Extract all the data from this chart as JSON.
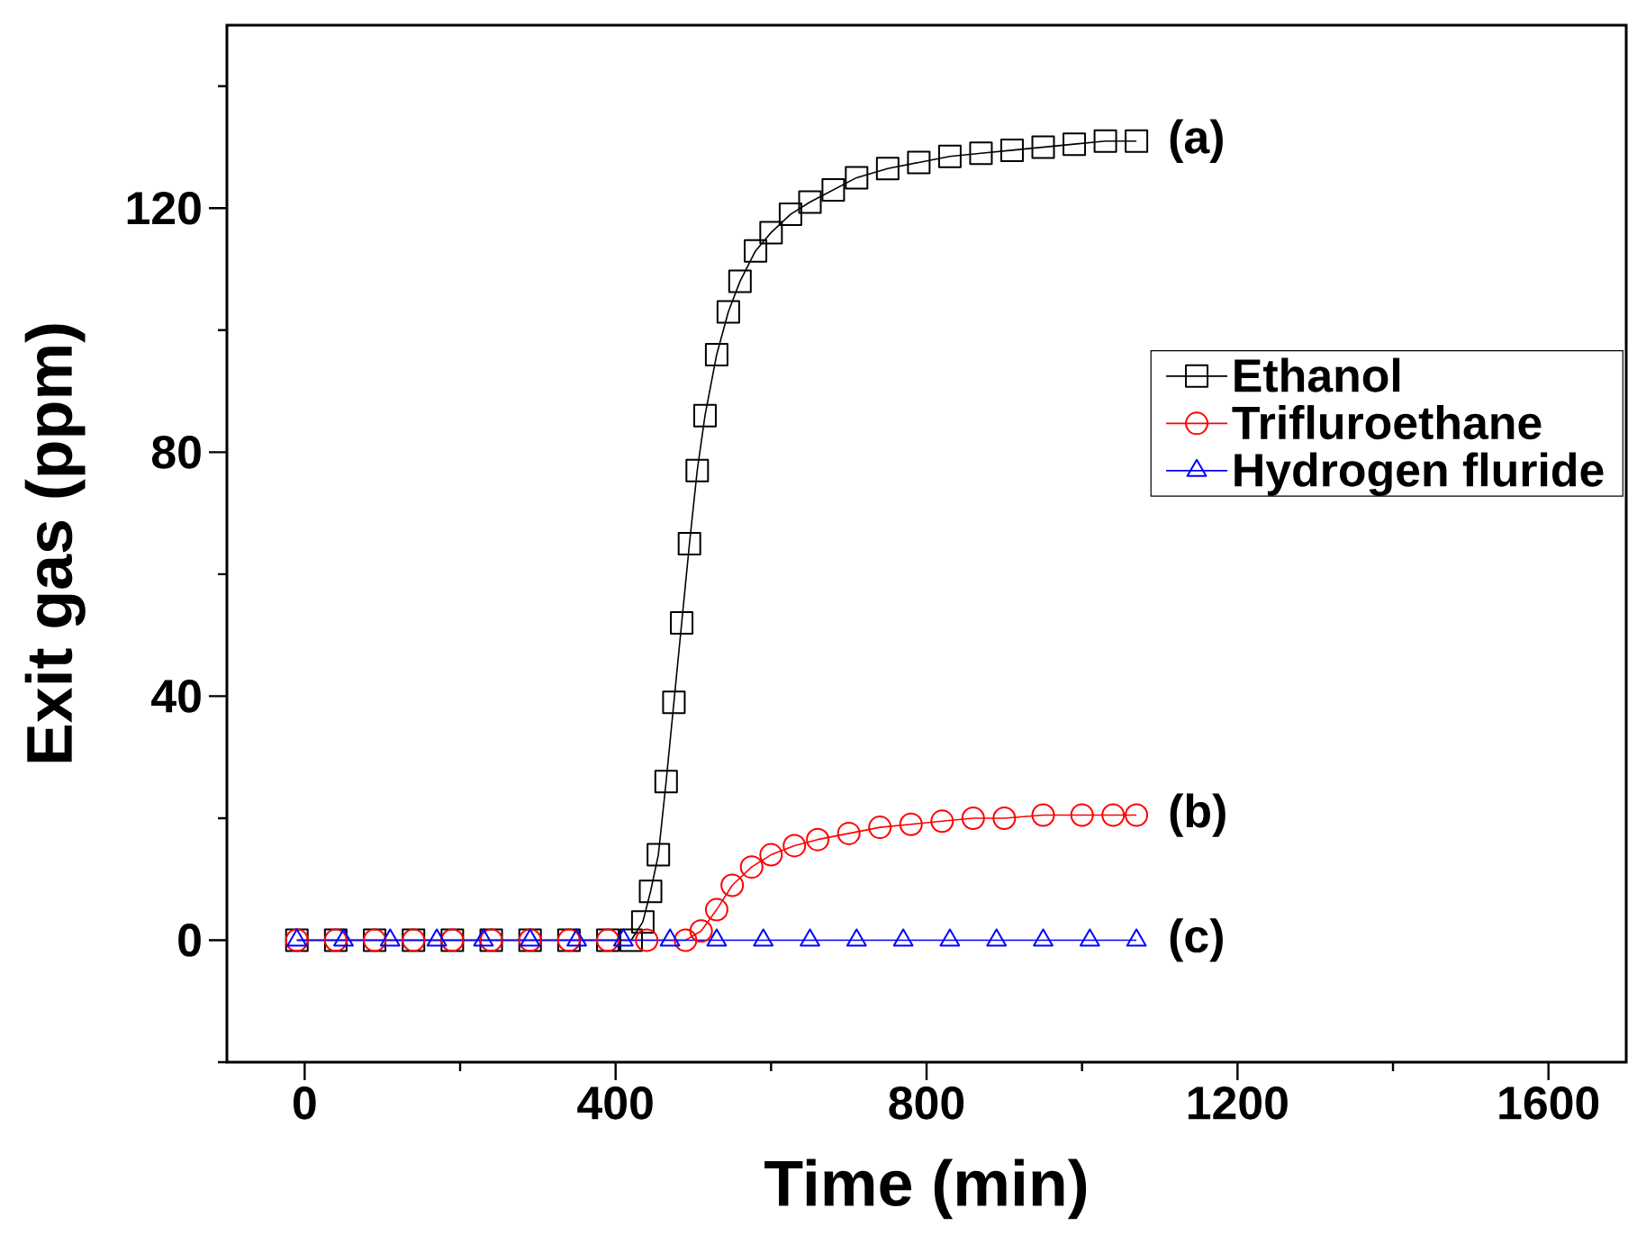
{
  "chart_data": {
    "type": "line",
    "xlabel": "Time (min)",
    "ylabel": "Exit gas (ppm)",
    "xlim": [
      -100,
      1700
    ],
    "ylim": [
      -20,
      150
    ],
    "xticks": [
      0,
      {
        "value": 200,
        "label": null
      },
      400,
      {
        "value": 600,
        "label": null
      },
      800,
      {
        "value": 1000,
        "label": null
      },
      1200,
      {
        "value": 1400,
        "label": null
      },
      1600
    ],
    "yticks": [
      {
        "value": -20,
        "label": null
      },
      0,
      {
        "value": 20,
        "label": null
      },
      40,
      {
        "value": 60,
        "label": null
      },
      80,
      {
        "value": 100,
        "label": null
      },
      120,
      {
        "value": 140,
        "label": null
      }
    ],
    "legend": "right",
    "grid": false,
    "line_style": "solid",
    "series": [
      {
        "name": "Ethanol",
        "color": "#000000",
        "marker": "square",
        "x": [
          -10,
          40,
          90,
          140,
          190,
          240,
          290,
          340,
          390,
          420,
          435,
          445,
          455,
          465,
          475,
          485,
          495,
          505,
          515,
          530,
          545,
          560,
          580,
          600,
          625,
          650,
          680,
          710,
          750,
          790,
          830,
          870,
          910,
          950,
          990,
          1030,
          1070
        ],
        "values": [
          0,
          0,
          0,
          0,
          0,
          0,
          0,
          0,
          0,
          0,
          3,
          8,
          14,
          26,
          39,
          52,
          65,
          77,
          86,
          96,
          103,
          108,
          113,
          116,
          119,
          121,
          123,
          125,
          126.5,
          127.5,
          128.5,
          129,
          129.5,
          130,
          130.5,
          131,
          131
        ]
      },
      {
        "name": "Trifluroethane",
        "color": "#ff0000",
        "marker": "circle",
        "x": [
          -10,
          40,
          90,
          140,
          190,
          240,
          290,
          340,
          390,
          440,
          490,
          510,
          530,
          550,
          575,
          600,
          630,
          660,
          700,
          740,
          780,
          820,
          860,
          900,
          950,
          1000,
          1040,
          1070
        ],
        "values": [
          0,
          0,
          0,
          0,
          0,
          0,
          0,
          0,
          0,
          0,
          0,
          1.5,
          5,
          9,
          12,
          14,
          15.5,
          16.5,
          17.5,
          18.5,
          19,
          19.5,
          20,
          20,
          20.5,
          20.5,
          20.5,
          20.5
        ]
      },
      {
        "name": "Hydrogen fluride",
        "color": "#0000ff",
        "marker": "triangle",
        "x": [
          -10,
          50,
          110,
          170,
          230,
          290,
          350,
          410,
          470,
          530,
          590,
          650,
          710,
          770,
          830,
          890,
          950,
          1010,
          1070
        ],
        "values": [
          0,
          0,
          0,
          0,
          0,
          0,
          0,
          0,
          0,
          0,
          0,
          0,
          0,
          0,
          0,
          0,
          0,
          0,
          0
        ]
      }
    ],
    "annotations": [
      "(a)",
      "(b)",
      "(c)"
    ]
  }
}
